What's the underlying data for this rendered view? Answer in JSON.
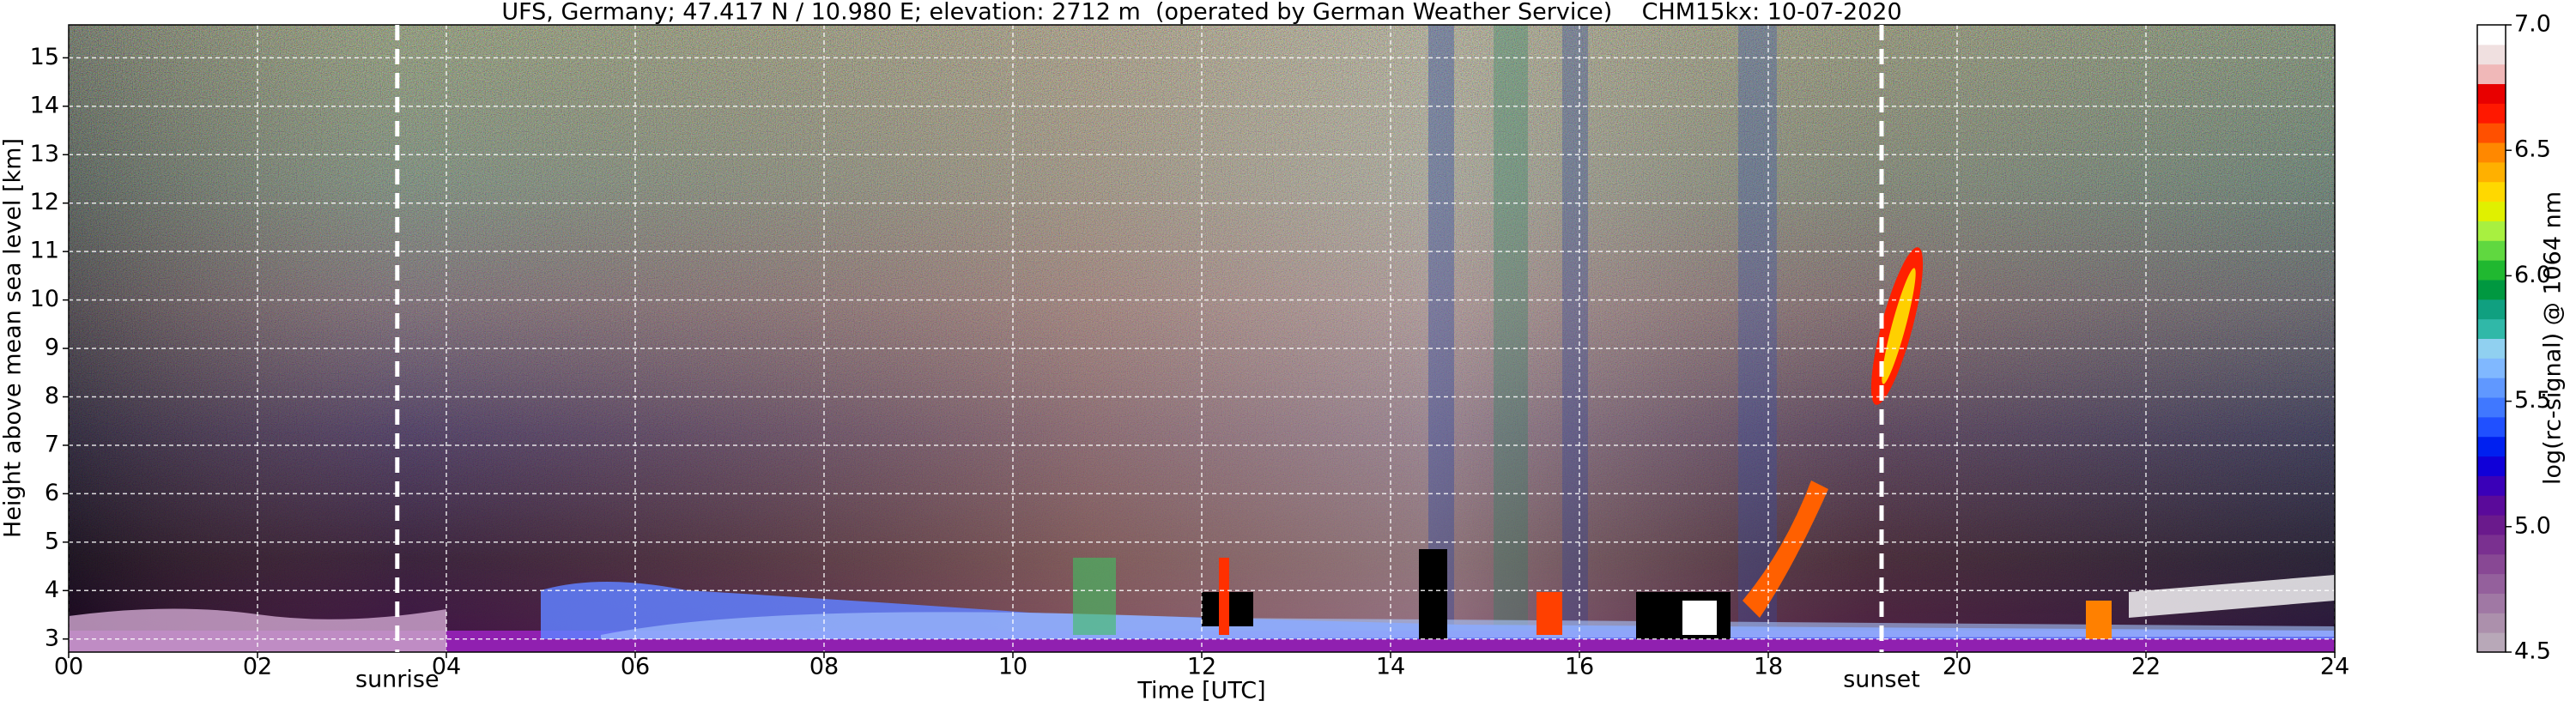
{
  "chart_data": {
    "type": "heatmap",
    "title": "UFS, Germany; 47.417 N / 10.980 E; elevation: 2712 m  (operated by German Weather Service)    CHM15kx: 10-07-2020",
    "xlabel": "Time [UTC]",
    "ylabel": "Height above mean sea level [km]",
    "xlim": [
      0,
      24
    ],
    "ylim": [
      2.73,
      15.68
    ],
    "xticks": [
      {
        "value": 0,
        "label": "00"
      },
      {
        "value": 2,
        "label": "02"
      },
      {
        "value": 4,
        "label": "04"
      },
      {
        "value": 6,
        "label": "06"
      },
      {
        "value": 8,
        "label": "08"
      },
      10,
      12,
      14,
      16,
      18,
      20,
      22,
      24
    ],
    "yticks": [
      3,
      4,
      5,
      6,
      7,
      8,
      9,
      10,
      11,
      12,
      13,
      14,
      15
    ],
    "grid": true,
    "markers": [
      {
        "label": "sunrise",
        "x": 3.48
      },
      {
        "label": "sunset",
        "x": 19.2
      }
    ],
    "colorbar": {
      "label": "log(rc-signal) @ 1064 nm",
      "lim": [
        4.5,
        7.0
      ],
      "ticks": [
        {
          "value": 4.5,
          "label": "4.5"
        },
        {
          "value": 5,
          "label": "5.0"
        },
        {
          "value": 5.5,
          "label": "5.5"
        },
        {
          "value": 6,
          "label": "6.0"
        },
        {
          "value": 6.5,
          "label": "6.5"
        },
        {
          "value": 7,
          "label": "7.0"
        }
      ],
      "colors": [
        "#b8a8b8",
        "#ac90ac",
        "#a078a4",
        "#94609c",
        "#884894",
        "#7a3090",
        "#6a1a8c",
        "#5a0a9a",
        "#3a00b8",
        "#1000d8",
        "#0020f0",
        "#2050ff",
        "#4078ff",
        "#6098ff",
        "#80b8ff",
        "#90d0f0",
        "#30b8a8",
        "#10a080",
        "#009840",
        "#20b830",
        "#60d840",
        "#a8f040",
        "#e0f000",
        "#ffd800",
        "#ffb000",
        "#ff8800",
        "#ff5000",
        "#ff1800",
        "#e80000",
        "#f0b8b8",
        "#f0e0e0",
        "#ffffff"
      ]
    }
  }
}
